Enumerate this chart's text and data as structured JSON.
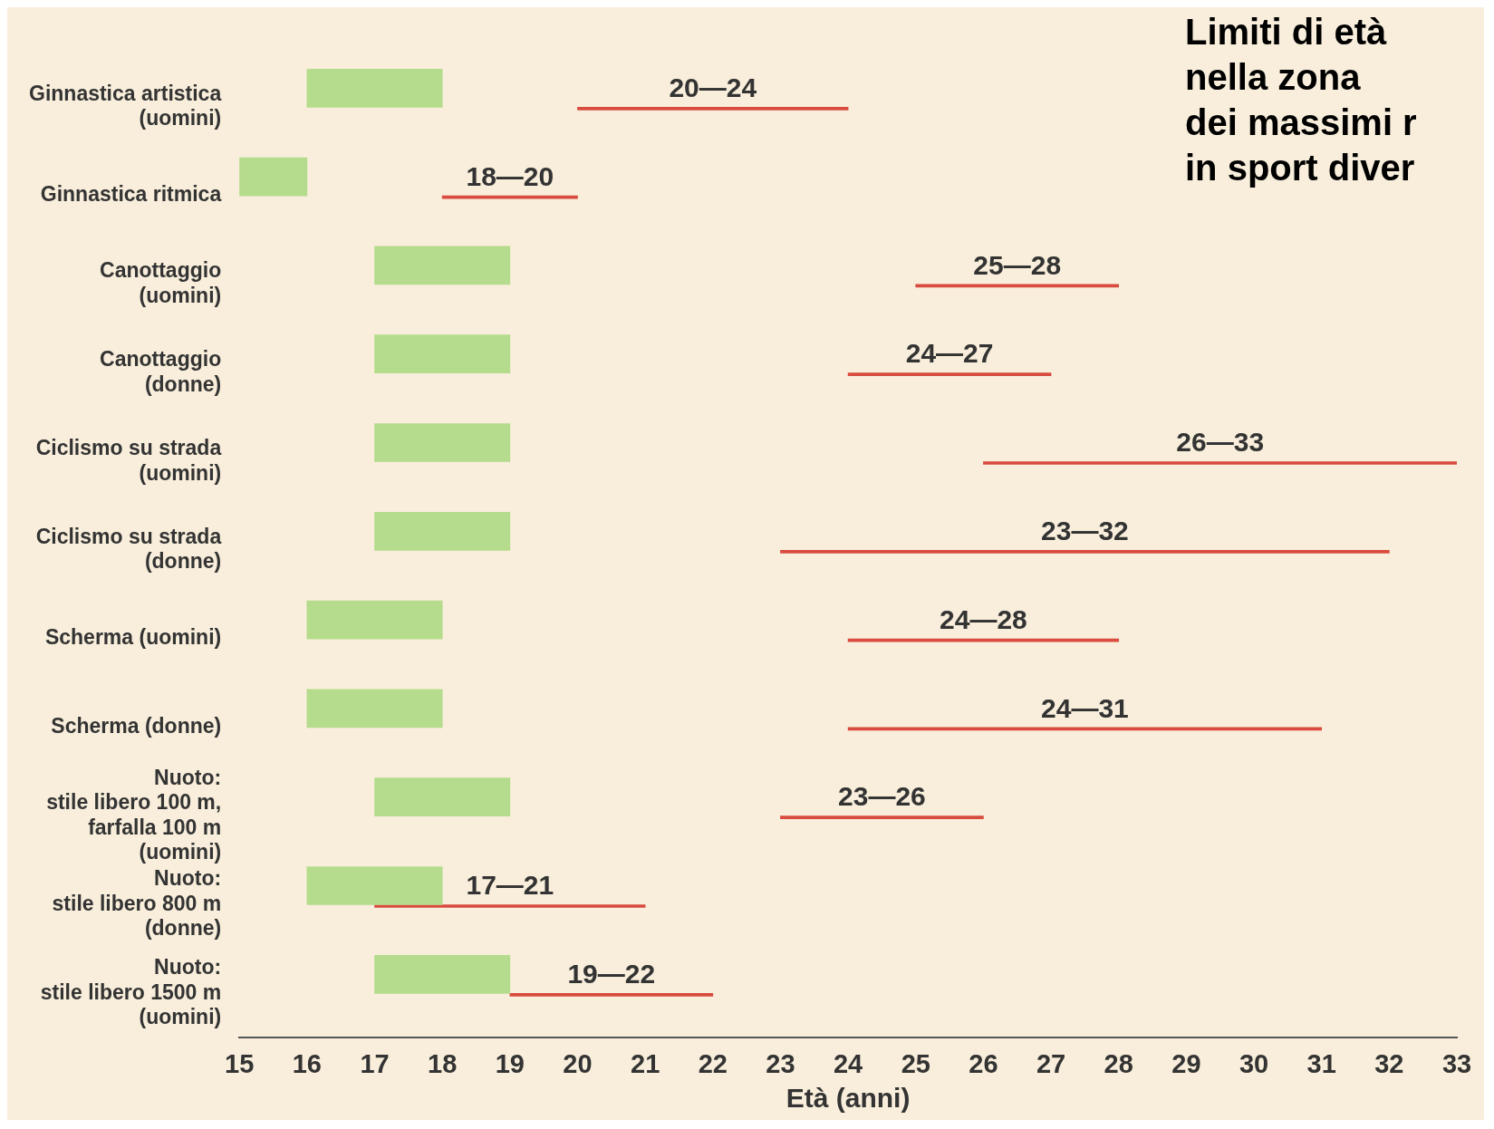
{
  "chart_data": {
    "type": "bar",
    "orientation": "horizontal",
    "title": "Limiti di età\nnella zona\ndei massimi r\nin sport diver",
    "xlabel": "Età (anni)",
    "categories": [
      "Ginnastica artistica\n(uomini)",
      "Ginnastica ritmica",
      "Canottaggio\n(uomini)",
      "Canottaggio\n(donne)",
      "Ciclismo su strada\n(uomini)",
      "Ciclismo su strada\n(donne)",
      "Scherma (uomini)",
      "Scherma (donne)",
      "Nuoto:\nstile libero 100 m,\nfarfalla 100 m\n(uomini)",
      "Nuoto:\nstile libero 800 m\n(donne)",
      "Nuoto:\nstile libero 1500 m\n(uomini)"
    ],
    "series": [
      {
        "color": "#b5dc8c",
        "base": [
          16,
          15,
          17,
          17,
          17,
          17,
          16,
          16,
          17,
          16,
          17
        ],
        "values": [
          2,
          1,
          2,
          2,
          2,
          2,
          2,
          2,
          2,
          2,
          2
        ]
      },
      {
        "color": "#d94a3f",
        "base": [
          20,
          18,
          25,
          24,
          26,
          23,
          24,
          24,
          23,
          17,
          19
        ],
        "values": [
          4,
          2,
          3,
          3,
          7,
          9,
          4,
          7,
          3,
          4,
          3
        ]
      }
    ],
    "annotations": [
      {
        "text": "20—24",
        "x": 22,
        "y": "Ginnastica artistica\n(uomini)"
      },
      {
        "text": "18—20",
        "x": 19,
        "y": "Ginnastica ritmica"
      },
      {
        "text": "25—28",
        "x": 26.5,
        "y": "Canottaggio\n(uomini)"
      },
      {
        "text": "24—27",
        "x": 25.5,
        "y": "Canottaggio\n(donne)"
      },
      {
        "text": "26—33",
        "x": 29.5,
        "y": "Ciclismo su strada\n(uomini)"
      },
      {
        "text": "23—32",
        "x": 27.5,
        "y": "Ciclismo su strada\n(donne)"
      },
      {
        "text": "24—28",
        "x": 26,
        "y": "Scherma (uomini)"
      },
      {
        "text": "24—31",
        "x": 27.5,
        "y": "Scherma (donne)"
      },
      {
        "text": "23—26",
        "x": 24.5,
        "y": "Nuoto:\nstile libero 100 m,\nfarfalla 100 m\n(uomini)"
      },
      {
        "text": "17—21",
        "x": 19,
        "y": "Nuoto:\nstile libero 800 m\n(donne)"
      },
      {
        "text": "19—22",
        "x": 20.5,
        "y": "Nuoto:\nstile libero 1500 m\n(uomini)"
      }
    ],
    "xlim": [
      15,
      33
    ],
    "xticks": [
      15,
      16,
      17,
      18,
      19,
      20,
      21,
      22,
      23,
      24,
      25,
      26,
      27,
      28,
      29,
      30,
      31,
      32,
      33
    ],
    "grid": false,
    "legend": false
  }
}
